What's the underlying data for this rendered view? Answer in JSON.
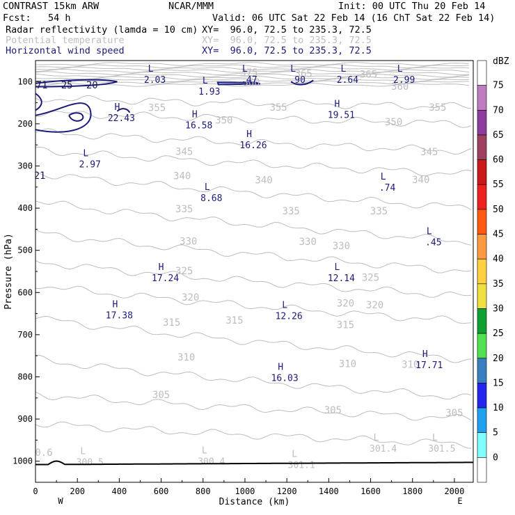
{
  "header": {
    "model": "CONTRAST 15km ARW",
    "org": "NCAR/MMM",
    "init": "Init: 00 UTC Thu 20 Feb 14",
    "fcst": "Fcst:   54 h",
    "valid": "Valid: 06 UTC Sat 22 Feb 14 (16 ChT Sat 22 Feb 14)",
    "rows": [
      {
        "field": "Radar reflectivity (lamda = 10 cm)",
        "xy": "XY=  96.0, 72.5 to 235.3, 72.5",
        "color": "#000000"
      },
      {
        "field": "Potential temperature",
        "xy": "XY=  96.0, 72.5 to 235.3, 72.5",
        "color": "#bdbdbd"
      },
      {
        "field": "Horizontal wind speed",
        "xy": "XY=  96.0, 72.5 to 235.3, 72.5",
        "color": "#1a1a7a"
      }
    ]
  },
  "chart_data": {
    "type": "cross-section contour",
    "xlabel": "Distance (km)",
    "ylabel": "Pressure (hPa)",
    "xlim": [
      0,
      2090
    ],
    "ylim": [
      1050,
      50
    ],
    "x_ticks": [
      0,
      200,
      400,
      600,
      800,
      1000,
      1200,
      1400,
      1600,
      1800,
      2000
    ],
    "y_ticks": [
      100,
      200,
      300,
      400,
      500,
      600,
      700,
      800,
      900,
      1000
    ],
    "x_end_labels": {
      "left": "W",
      "right": "E"
    },
    "colorbar": {
      "label": "dBZ",
      "levels": [
        75,
        70,
        65,
        60,
        55,
        50,
        45,
        40,
        35,
        30,
        25,
        20,
        15,
        10,
        5,
        0
      ],
      "colors": [
        "#ffffff",
        "#c07cc0",
        "#8c3c9c",
        "#a04060",
        "#cc1818",
        "#ee2020",
        "#ff5a10",
        "#ff9a40",
        "#ffd040",
        "#eee040",
        "#10a030",
        "#50e050",
        "#3a80c0",
        "#2424f0",
        "#20a0f0",
        "#80ffff",
        "#ffffff"
      ]
    },
    "theta_contours": {
      "color": "#bdbdbd",
      "labels": [
        {
          "text": "375",
          "x": 1020,
          "p": 80
        },
        {
          "text": "365",
          "x": 1280,
          "p": 82
        },
        {
          "text": "365",
          "x": 1590,
          "p": 84
        },
        {
          "text": "360",
          "x": 1030,
          "p": 103
        },
        {
          "text": "360",
          "x": 1740,
          "p": 113
        },
        {
          "text": "355",
          "x": 580,
          "p": 163
        },
        {
          "text": "355",
          "x": 1160,
          "p": 162
        },
        {
          "text": "355",
          "x": 1920,
          "p": 162
        },
        {
          "text": "350",
          "x": 900,
          "p": 193
        },
        {
          "text": "350",
          "x": 1710,
          "p": 197
        },
        {
          "text": "345",
          "x": 710,
          "p": 267
        },
        {
          "text": "345",
          "x": 1880,
          "p": 268
        },
        {
          "text": "340",
          "x": 700,
          "p": 325
        },
        {
          "text": "340",
          "x": 1090,
          "p": 335
        },
        {
          "text": "340",
          "x": 1840,
          "p": 334
        },
        {
          "text": "335",
          "x": 710,
          "p": 403
        },
        {
          "text": "335",
          "x": 1220,
          "p": 408
        },
        {
          "text": "335",
          "x": 1640,
          "p": 408
        },
        {
          "text": "330",
          "x": 730,
          "p": 480
        },
        {
          "text": "330",
          "x": 1300,
          "p": 481
        },
        {
          "text": "330",
          "x": 1460,
          "p": 491
        },
        {
          "text": "325",
          "x": 710,
          "p": 550
        },
        {
          "text": "325",
          "x": 1600,
          "p": 566
        },
        {
          "text": "320",
          "x": 740,
          "p": 613
        },
        {
          "text": "320",
          "x": 1480,
          "p": 627
        },
        {
          "text": "320",
          "x": 1620,
          "p": 631
        },
        {
          "text": "315",
          "x": 650,
          "p": 672
        },
        {
          "text": "315",
          "x": 950,
          "p": 667
        },
        {
          "text": "315",
          "x": 1480,
          "p": 678
        },
        {
          "text": "310",
          "x": 720,
          "p": 755
        },
        {
          "text": "310",
          "x": 1490,
          "p": 770
        },
        {
          "text": "310",
          "x": 1790,
          "p": 772
        },
        {
          "text": "305",
          "x": 600,
          "p": 844
        },
        {
          "text": "305",
          "x": 1420,
          "p": 880
        },
        {
          "text": "305",
          "x": 2000,
          "p": 887
        },
        {
          "text": "0.6",
          "x": 40,
          "p": 981
        }
      ],
      "extremes": [
        {
          "type": "L",
          "value": "300.5",
          "x": 260,
          "p": 996
        },
        {
          "type": "L",
          "value": "300.4",
          "x": 840,
          "p": 995
        },
        {
          "type": "L",
          "value": "301.1",
          "x": 1270,
          "p": 1003
        },
        {
          "type": "L",
          "value": "301.4",
          "x": 1660,
          "p": 964
        },
        {
          "type": "L",
          "value": "301.5",
          "x": 1940,
          "p": 964
        }
      ]
    },
    "wind_speed_contours": {
      "color": "#1a1a7a",
      "labels": [
        {
          "text": "71",
          "x": 30,
          "p": 108
        },
        {
          "text": "25",
          "x": 150,
          "p": 108
        },
        {
          "text": "20",
          "x": 270,
          "p": 108
        },
        {
          "text": "21",
          "x": 20,
          "p": 322
        }
      ],
      "extremes": [
        {
          "type": "L",
          "value": "2.03",
          "x": 570,
          "p": 90
        },
        {
          "type": "L",
          "value": ".47",
          "x": 1020,
          "p": 90
        },
        {
          "type": "L",
          "value": ".90",
          "x": 1250,
          "p": 90
        },
        {
          "type": "L",
          "value": "2.64",
          "x": 1490,
          "p": 90
        },
        {
          "type": "L",
          "value": "2.99",
          "x": 1760,
          "p": 90
        },
        {
          "type": "L",
          "value": "1.93",
          "x": 830,
          "p": 118
        },
        {
          "type": "H",
          "value": "22.43",
          "x": 410,
          "p": 180
        },
        {
          "type": "H",
          "value": "19.51",
          "x": 1460,
          "p": 173
        },
        {
          "type": "H",
          "value": "16.58",
          "x": 780,
          "p": 198
        },
        {
          "type": "H",
          "value": "16.26",
          "x": 1040,
          "p": 245
        },
        {
          "type": "L",
          "value": "2.97",
          "x": 260,
          "p": 290
        },
        {
          "type": "L",
          "value": ".74",
          "x": 1680,
          "p": 345
        },
        {
          "type": "L",
          "value": "8.68",
          "x": 840,
          "p": 370
        },
        {
          "type": "L",
          "value": ".45",
          "x": 1900,
          "p": 475
        },
        {
          "type": "H",
          "value": "17.24",
          "x": 620,
          "p": 560
        },
        {
          "type": "L",
          "value": "12.14",
          "x": 1460,
          "p": 560
        },
        {
          "type": "H",
          "value": "17.38",
          "x": 400,
          "p": 648
        },
        {
          "type": "L",
          "value": "12.26",
          "x": 1210,
          "p": 650
        },
        {
          "type": "H",
          "value": "17.71",
          "x": 1880,
          "p": 766
        },
        {
          "type": "H",
          "value": "16.03",
          "x": 1190,
          "p": 797
        }
      ]
    }
  }
}
